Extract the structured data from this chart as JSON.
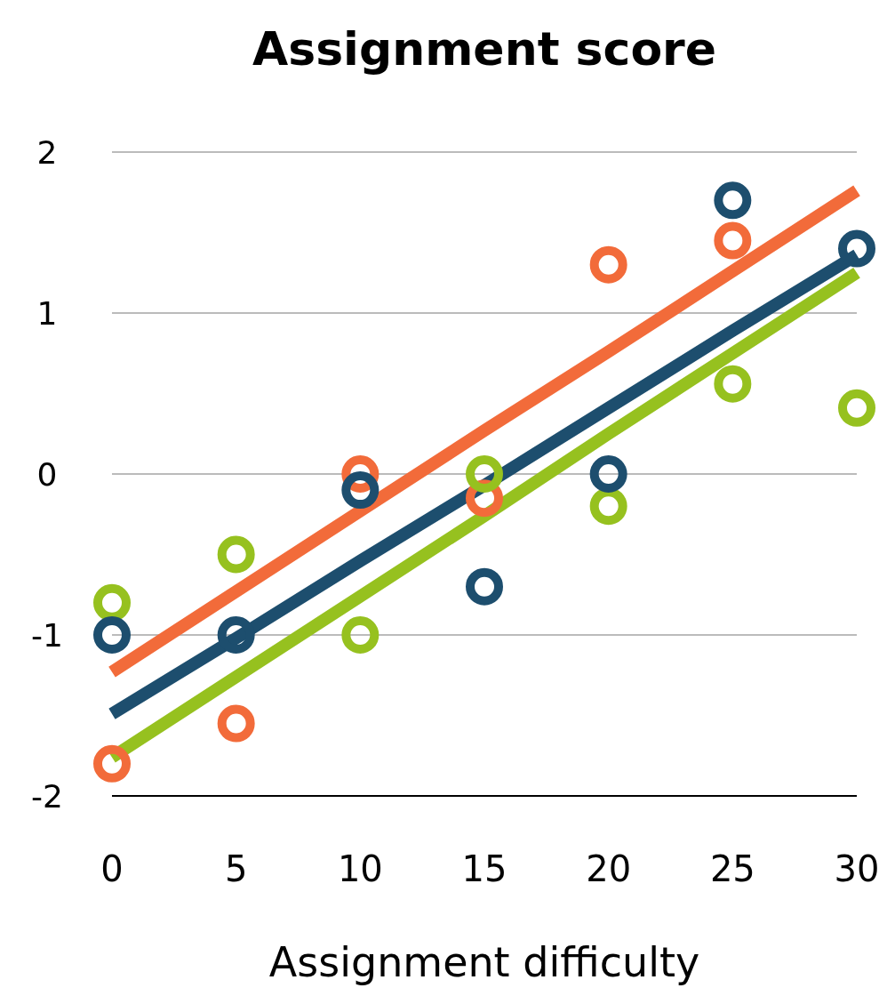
{
  "chart_data": {
    "type": "scatter",
    "title": "Assignment score",
    "xlabel": "Assignment difficulty",
    "x": [
      0,
      5,
      10,
      15,
      20,
      25,
      30
    ],
    "xlim": [
      0,
      30
    ],
    "xticks": [
      0,
      5,
      10,
      15,
      20,
      25,
      30
    ],
    "ylim": [
      -2,
      2
    ],
    "yticks": [
      -2,
      -1,
      0,
      1,
      2
    ],
    "grid": "y",
    "series": [
      {
        "color": "#f26b3a",
        "marker": "circle",
        "values": [
          -1.8,
          -1.55,
          0,
          -0.15,
          1.3,
          1.45,
          null
        ]
      },
      {
        "color": "#96c11f",
        "marker": "circle",
        "values": [
          -0.8,
          -0.5,
          -1.0,
          0,
          -0.2,
          0.56,
          0.41
        ]
      },
      {
        "color": "#1d4e6e",
        "marker": "circle",
        "values": [
          -1.0,
          -1.0,
          -0.1,
          -0.7,
          0,
          1.7,
          1.4
        ]
      },
      {
        "type": "line",
        "color": "#f26b3a",
        "x": [
          0,
          5,
          10,
          15,
          20,
          25,
          30
        ],
        "values": [
          -1.23,
          -0.73,
          -0.23,
          0.27,
          0.76,
          1.26,
          1.76
        ]
      },
      {
        "type": "line",
        "color": "#1d4e6e",
        "x": [
          0,
          5,
          10,
          15,
          20,
          25,
          30
        ],
        "values": [
          -1.49,
          -1.02,
          -0.54,
          -0.07,
          0.41,
          0.89,
          1.36
        ]
      },
      {
        "type": "line",
        "color": "#96c11f",
        "x": [
          0,
          5,
          10,
          15,
          20,
          25,
          30
        ],
        "values": [
          -1.76,
          -1.26,
          -0.76,
          -0.26,
          0.25,
          0.75,
          1.25
        ]
      }
    ]
  }
}
